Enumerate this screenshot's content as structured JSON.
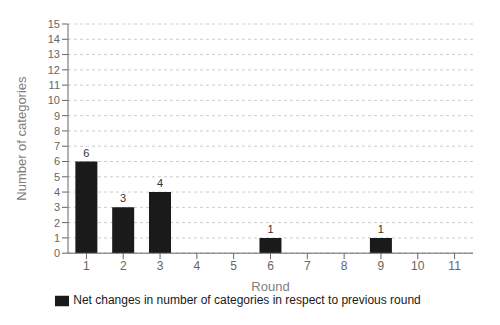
{
  "chart_data": {
    "type": "bar",
    "categories": [
      1,
      2,
      3,
      4,
      5,
      6,
      7,
      8,
      9,
      10,
      11
    ],
    "series": [
      {
        "name": "Net changes in number of categories in respect to previous round",
        "color": "#1a1a1a",
        "values": [
          6,
          3,
          4,
          0,
          0,
          1,
          0,
          0,
          1,
          0,
          0
        ]
      }
    ],
    "xlabel": "Round",
    "ylabel": "Number of categories",
    "ylim": [
      0,
      15
    ],
    "yticks": [
      0,
      1,
      2,
      3,
      4,
      5,
      6,
      7,
      8,
      9,
      10,
      11,
      12,
      13,
      14,
      15
    ],
    "grid": true,
    "legend": "bottom",
    "data_labels": true
  }
}
